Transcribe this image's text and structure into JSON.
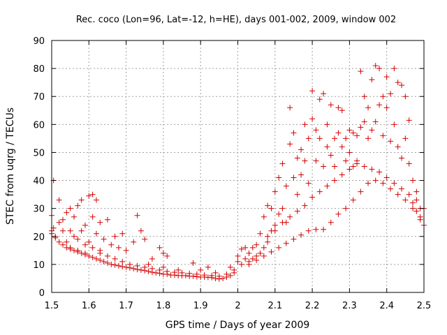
{
  "chart_data": {
    "type": "scatter",
    "title": "Rec. coco (Lon=96, Lat=-12, h=HE), days 001-002, 2009, window 002",
    "xlabel": "GPS time / Days of year 2009",
    "ylabel": "STEC from uqrg / TECUs",
    "xlim": [
      1.5,
      2.5
    ],
    "ylim": [
      0,
      90
    ],
    "xticks": [
      "1.5",
      "1.6",
      "1.7",
      "1.8",
      "1.9",
      "2",
      "2.1",
      "2.2",
      "2.3",
      "2.4",
      "2.5"
    ],
    "yticks": [
      "0",
      "10",
      "20",
      "30",
      "40",
      "50",
      "60",
      "70",
      "80",
      "90"
    ],
    "grid": true,
    "marker": "plus",
    "marker_color": "#d40000",
    "series": [
      {
        "name": "STEC",
        "points": [
          [
            1.5,
            27.5
          ],
          [
            1.505,
            40.0
          ],
          [
            1.5,
            21.0
          ],
          [
            1.505,
            23.0
          ],
          [
            1.51,
            19.5
          ],
          [
            1.52,
            33.0
          ],
          [
            1.52,
            25.0
          ],
          [
            1.53,
            26.0
          ],
          [
            1.53,
            22.0
          ],
          [
            1.54,
            28.5
          ],
          [
            1.54,
            18.0
          ],
          [
            1.55,
            30.0
          ],
          [
            1.55,
            16.0
          ],
          [
            1.56,
            27.0
          ],
          [
            1.56,
            20.0
          ],
          [
            1.57,
            31.0
          ],
          [
            1.57,
            15.0
          ],
          [
            1.58,
            33.0
          ],
          [
            1.58,
            22.0
          ],
          [
            1.59,
            24.0
          ],
          [
            1.59,
            14.0
          ],
          [
            1.6,
            34.5
          ],
          [
            1.6,
            18.0
          ],
          [
            1.61,
            35.0
          ],
          [
            1.61,
            27.0
          ],
          [
            1.62,
            33.0
          ],
          [
            1.62,
            21.0
          ],
          [
            1.63,
            25.0
          ],
          [
            1.63,
            15.0
          ],
          [
            1.64,
            19.0
          ],
          [
            1.65,
            26.0
          ],
          [
            1.66,
            17.0
          ],
          [
            1.67,
            20.0
          ],
          [
            1.68,
            16.0
          ],
          [
            1.69,
            21.0
          ],
          [
            1.7,
            15.0
          ],
          [
            1.72,
            18.0
          ],
          [
            1.73,
            27.5
          ],
          [
            1.74,
            22.0
          ],
          [
            1.75,
            19.0
          ],
          [
            1.77,
            12.0
          ],
          [
            1.79,
            16.0
          ],
          [
            1.8,
            14.0
          ],
          [
            1.81,
            13.0
          ],
          [
            1.5,
            22.0
          ],
          [
            1.51,
            20.0
          ],
          [
            1.52,
            18.0
          ],
          [
            1.53,
            17.0
          ],
          [
            1.54,
            16.0
          ],
          [
            1.55,
            15.5
          ],
          [
            1.56,
            15.0
          ],
          [
            1.57,
            14.5
          ],
          [
            1.58,
            14.0
          ],
          [
            1.59,
            13.5
          ],
          [
            1.6,
            13.0
          ],
          [
            1.61,
            12.5
          ],
          [
            1.62,
            12.0
          ],
          [
            1.63,
            11.5
          ],
          [
            1.64,
            11.0
          ],
          [
            1.65,
            10.5
          ],
          [
            1.66,
            10.0
          ],
          [
            1.67,
            9.8
          ],
          [
            1.68,
            9.5
          ],
          [
            1.69,
            9.2
          ],
          [
            1.7,
            9.0
          ],
          [
            1.71,
            8.8
          ],
          [
            1.72,
            8.5
          ],
          [
            1.73,
            8.2
          ],
          [
            1.74,
            8.0
          ],
          [
            1.75,
            7.8
          ],
          [
            1.76,
            7.5
          ],
          [
            1.77,
            7.2
          ],
          [
            1.78,
            7.0
          ],
          [
            1.79,
            6.8
          ],
          [
            1.8,
            6.5
          ],
          [
            1.81,
            6.5
          ],
          [
            1.82,
            6.2
          ],
          [
            1.83,
            6.2
          ],
          [
            1.84,
            6.0
          ],
          [
            1.85,
            6.0
          ],
          [
            1.86,
            6.0
          ],
          [
            1.87,
            5.8
          ],
          [
            1.88,
            5.8
          ],
          [
            1.89,
            5.6
          ],
          [
            1.9,
            5.5
          ],
          [
            1.91,
            5.5
          ],
          [
            1.92,
            5.4
          ],
          [
            1.93,
            5.3
          ],
          [
            1.94,
            5.0
          ],
          [
            1.95,
            4.8
          ],
          [
            1.96,
            5.0
          ],
          [
            1.97,
            5.5
          ],
          [
            1.98,
            6.0
          ],
          [
            1.99,
            7.0
          ],
          [
            1.55,
            22.0
          ],
          [
            1.57,
            19.0
          ],
          [
            1.59,
            17.0
          ],
          [
            1.61,
            16.0
          ],
          [
            1.63,
            14.0
          ],
          [
            1.65,
            13.0
          ],
          [
            1.67,
            12.0
          ],
          [
            1.69,
            11.0
          ],
          [
            1.71,
            10.0
          ],
          [
            1.73,
            9.5
          ],
          [
            1.75,
            9.0
          ],
          [
            1.77,
            8.5
          ],
          [
            1.79,
            8.0
          ],
          [
            1.81,
            7.5
          ],
          [
            1.83,
            7.2
          ],
          [
            1.85,
            7.0
          ],
          [
            1.87,
            6.8
          ],
          [
            1.89,
            6.5
          ],
          [
            1.91,
            6.2
          ],
          [
            1.93,
            6.0
          ],
          [
            1.95,
            5.8
          ],
          [
            1.97,
            6.5
          ],
          [
            1.99,
            8.0
          ],
          [
            1.76,
            10.0
          ],
          [
            1.8,
            9.0
          ],
          [
            1.84,
            8.0
          ],
          [
            1.88,
            10.5
          ],
          [
            1.9,
            8.0
          ],
          [
            1.92,
            9.0
          ],
          [
            1.94,
            7.0
          ],
          [
            1.98,
            9.0
          ],
          [
            2.0,
            11.0
          ],
          [
            2.0,
            13.0
          ],
          [
            2.01,
            10.0
          ],
          [
            2.01,
            15.5
          ],
          [
            2.02,
            12.0
          ],
          [
            2.02,
            16.0
          ],
          [
            2.03,
            11.0
          ],
          [
            2.03,
            14.0
          ],
          [
            2.04,
            16.0
          ],
          [
            2.04,
            12.0
          ],
          [
            2.05,
            17.0
          ],
          [
            2.05,
            13.0
          ],
          [
            2.06,
            21.0
          ],
          [
            2.06,
            14.0
          ],
          [
            2.07,
            27.0
          ],
          [
            2.07,
            16.0
          ],
          [
            2.08,
            31.0
          ],
          [
            2.08,
            18.0
          ],
          [
            2.09,
            30.0
          ],
          [
            2.09,
            22.0
          ],
          [
            2.1,
            36.0
          ],
          [
            2.1,
            24.0
          ],
          [
            2.11,
            41.0
          ],
          [
            2.11,
            28.0
          ],
          [
            2.12,
            46.0
          ],
          [
            2.12,
            30.0
          ],
          [
            2.13,
            38.0
          ],
          [
            2.13,
            25.0
          ],
          [
            2.14,
            66.0
          ],
          [
            2.14,
            53.0
          ],
          [
            2.15,
            57.0
          ],
          [
            2.15,
            41.0
          ],
          [
            2.16,
            48.0
          ],
          [
            2.16,
            35.0
          ],
          [
            2.17,
            51.0
          ],
          [
            2.17,
            42.0
          ],
          [
            2.18,
            60.0
          ],
          [
            2.18,
            47.0
          ],
          [
            2.19,
            55.0
          ],
          [
            2.19,
            39.0
          ],
          [
            2.2,
            72.0
          ],
          [
            2.2,
            62.0
          ],
          [
            2.21,
            58.0
          ],
          [
            2.21,
            47.0
          ],
          [
            2.22,
            69.0
          ],
          [
            2.22,
            55.0
          ],
          [
            2.23,
            71.0
          ],
          [
            2.23,
            45.0
          ],
          [
            2.24,
            60.0
          ],
          [
            2.24,
            52.0
          ],
          [
            2.25,
            67.0
          ],
          [
            2.25,
            49.0
          ],
          [
            2.26,
            55.0
          ],
          [
            2.26,
            45.0
          ],
          [
            2.27,
            66.0
          ],
          [
            2.27,
            57.0
          ],
          [
            2.28,
            65.0
          ],
          [
            2.28,
            52.0
          ],
          [
            2.29,
            55.0
          ],
          [
            2.29,
            47.0
          ],
          [
            2.3,
            58.0
          ],
          [
            2.3,
            50.0
          ],
          [
            2.31,
            57.0
          ],
          [
            2.31,
            45.0
          ],
          [
            2.32,
            56.0
          ],
          [
            2.32,
            47.0
          ],
          [
            2.33,
            79.0
          ],
          [
            2.33,
            59.0
          ],
          [
            2.34,
            70.0
          ],
          [
            2.34,
            61.0
          ],
          [
            2.35,
            66.0
          ],
          [
            2.35,
            55.0
          ],
          [
            2.36,
            76.0
          ],
          [
            2.36,
            58.0
          ],
          [
            2.37,
            81.0
          ],
          [
            2.37,
            61.0
          ],
          [
            2.38,
            80.0
          ],
          [
            2.38,
            67.0
          ],
          [
            2.39,
            70.0
          ],
          [
            2.39,
            56.0
          ],
          [
            2.4,
            77.0
          ],
          [
            2.4,
            66.0
          ],
          [
            2.41,
            71.0
          ],
          [
            2.41,
            54.0
          ],
          [
            2.42,
            80.0
          ],
          [
            2.42,
            60.0
          ],
          [
            2.43,
            75.0
          ],
          [
            2.43,
            52.0
          ],
          [
            2.44,
            74.0
          ],
          [
            2.44,
            48.0
          ],
          [
            2.45,
            70.0
          ],
          [
            2.45,
            55.0
          ],
          [
            2.46,
            61.5
          ],
          [
            2.46,
            46.0
          ],
          [
            2.47,
            40.0
          ],
          [
            2.47,
            32.0
          ],
          [
            2.48,
            36.0
          ],
          [
            2.48,
            29.0
          ],
          [
            2.49,
            30.0
          ],
          [
            2.49,
            26.0
          ],
          [
            2.5,
            24.0
          ],
          [
            2.03,
            10.0
          ],
          [
            2.05,
            11.5
          ],
          [
            2.07,
            13.0
          ],
          [
            2.09,
            14.5
          ],
          [
            2.11,
            16.0
          ],
          [
            2.13,
            17.5
          ],
          [
            2.15,
            19.0
          ],
          [
            2.17,
            20.5
          ],
          [
            2.19,
            22.0
          ],
          [
            2.21,
            22.5
          ],
          [
            2.23,
            22.5
          ],
          [
            2.25,
            25.0
          ],
          [
            2.27,
            28.0
          ],
          [
            2.29,
            30.0
          ],
          [
            2.31,
            33.0
          ],
          [
            2.33,
            36.0
          ],
          [
            2.35,
            39.0
          ],
          [
            2.37,
            40.0
          ],
          [
            2.39,
            39.0
          ],
          [
            2.41,
            37.0
          ],
          [
            2.43,
            35.0
          ],
          [
            2.45,
            33.0
          ],
          [
            2.47,
            30.0
          ],
          [
            2.49,
            27.0
          ],
          [
            2.08,
            20.0
          ],
          [
            2.1,
            22.0
          ],
          [
            2.12,
            25.0
          ],
          [
            2.14,
            27.0
          ],
          [
            2.16,
            29.0
          ],
          [
            2.18,
            31.0
          ],
          [
            2.2,
            34.0
          ],
          [
            2.22,
            36.0
          ],
          [
            2.24,
            38.0
          ],
          [
            2.26,
            40.0
          ],
          [
            2.28,
            42.0
          ],
          [
            2.3,
            44.0
          ],
          [
            2.32,
            46.0
          ],
          [
            2.34,
            45.0
          ],
          [
            2.36,
            44.0
          ],
          [
            2.38,
            43.0
          ],
          [
            2.4,
            41.0
          ],
          [
            2.42,
            39.0
          ],
          [
            2.44,
            37.0
          ],
          [
            2.46,
            35.0
          ],
          [
            2.48,
            33.0
          ],
          [
            2.5,
            30.0
          ]
        ]
      }
    ]
  }
}
